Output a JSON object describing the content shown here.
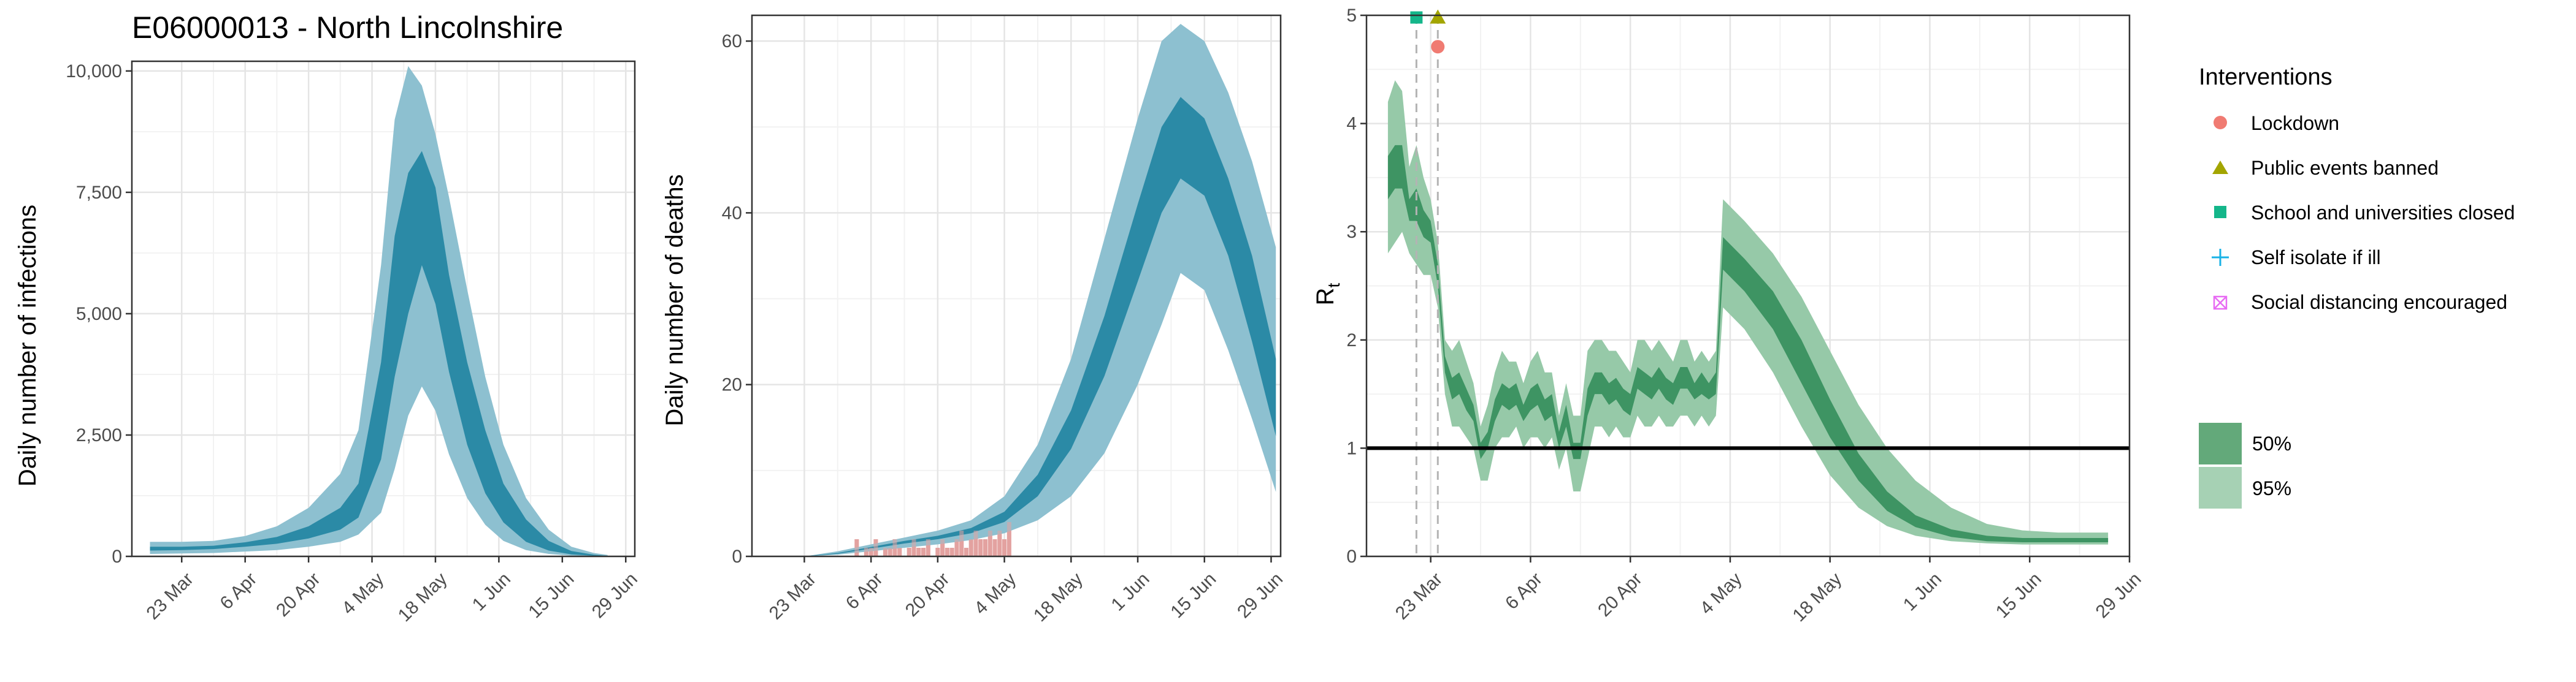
{
  "colors": {
    "infection_dark": "#2b8aa6",
    "infection_light": "#8dc0d0",
    "rt_dark": "#3e9463",
    "rt_light": "#96c9a8",
    "observed_deaths": "#e3a3a0",
    "lockdown": "#f07b72",
    "public_events": "#a3a500",
    "school": "#14b68a",
    "self_isolate": "#19b2e6",
    "social_distancing": "#e76bf3"
  },
  "chart_data": [
    {
      "type": "area",
      "title": "E06000013 - North Lincolnshire",
      "ylabel": "Daily number of infections",
      "xlabel": "",
      "x_ticks": [
        "23 Mar",
        "6 Apr",
        "20 Apr",
        "4 May",
        "18 May",
        "1 Jun",
        "15 Jun",
        "29 Jun"
      ],
      "y_ticks": [
        "0",
        "2,500",
        "5,000",
        "7,500",
        "10,000"
      ],
      "xlim": [
        "2020-03-12",
        "2020-07-01"
      ],
      "ylim": [
        0,
        10200
      ],
      "grid": true,
      "bands": {
        "x": [
          "2020-03-16",
          "2020-03-23",
          "2020-03-30",
          "2020-04-06",
          "2020-04-13",
          "2020-04-20",
          "2020-04-27",
          "2020-05-01",
          "2020-05-06",
          "2020-05-09",
          "2020-05-12",
          "2020-05-15",
          "2020-05-18",
          "2020-05-21",
          "2020-05-25",
          "2020-05-29",
          "2020-06-02",
          "2020-06-07",
          "2020-06-12",
          "2020-06-17",
          "2020-06-22",
          "2020-06-25"
        ],
        "outer_low": [
          50,
          60,
          70,
          100,
          130,
          200,
          300,
          450,
          900,
          1800,
          2900,
          3500,
          3000,
          2100,
          1200,
          650,
          320,
          130,
          50,
          15,
          5,
          2
        ],
        "outer_high": [
          300,
          300,
          320,
          420,
          620,
          1000,
          1700,
          2600,
          6000,
          9000,
          10100,
          9700,
          8700,
          7400,
          5500,
          3700,
          2300,
          1200,
          550,
          200,
          70,
          30
        ],
        "inner_low": [
          120,
          130,
          150,
          200,
          260,
          370,
          550,
          800,
          2000,
          3700,
          5000,
          6000,
          5200,
          3800,
          2300,
          1300,
          700,
          300,
          120,
          40,
          12,
          5
        ],
        "inner_high": [
          200,
          200,
          220,
          290,
          400,
          620,
          1000,
          1500,
          4000,
          6600,
          7900,
          8350,
          7600,
          5800,
          4000,
          2600,
          1500,
          760,
          320,
          110,
          35,
          12
        ]
      }
    },
    {
      "type": "area",
      "title": "",
      "ylabel": "Daily number of deaths",
      "xlabel": "",
      "x_ticks": [
        "23 Mar",
        "6 Apr",
        "20 Apr",
        "4 May",
        "18 May",
        "1 Jun",
        "15 Jun",
        "29 Jun"
      ],
      "y_ticks": [
        "0",
        "20",
        "40",
        "60"
      ],
      "xlim": [
        "2020-03-12",
        "2020-07-01"
      ],
      "ylim": [
        0,
        63
      ],
      "grid": true,
      "bands": {
        "x": [
          "2020-03-23",
          "2020-03-30",
          "2020-04-06",
          "2020-04-13",
          "2020-04-20",
          "2020-04-27",
          "2020-05-04",
          "2020-05-11",
          "2020-05-18",
          "2020-05-25",
          "2020-06-01",
          "2020-06-06",
          "2020-06-10",
          "2020-06-15",
          "2020-06-20",
          "2020-06-25",
          "2020-06-30"
        ],
        "outer_low": [
          0,
          0.2,
          0.6,
          1.0,
          1.4,
          1.9,
          2.7,
          4.2,
          7.0,
          12,
          20,
          27,
          33,
          31,
          24,
          16,
          7.5
        ],
        "outer_high": [
          0,
          0.6,
          1.4,
          2.2,
          3.0,
          4.2,
          7.0,
          13,
          23,
          37,
          51,
          60,
          62,
          60,
          54,
          46,
          36
        ],
        "inner_low": [
          0,
          0.3,
          0.9,
          1.5,
          2.0,
          2.7,
          4.0,
          7.0,
          12.5,
          21,
          32,
          40,
          44,
          42,
          35,
          25,
          14
        ],
        "inner_high": [
          0,
          0.4,
          1.1,
          1.8,
          2.4,
          3.3,
          5.2,
          9.5,
          17,
          28,
          41,
          50,
          53.5,
          51,
          44,
          35,
          23
        ]
      },
      "observed": {
        "x": [
          "2020-04-03",
          "2020-04-04",
          "2020-04-05",
          "2020-04-06",
          "2020-04-07",
          "2020-04-08",
          "2020-04-09",
          "2020-04-10",
          "2020-04-11",
          "2020-04-12",
          "2020-04-13",
          "2020-04-14",
          "2020-04-15",
          "2020-04-16",
          "2020-04-17",
          "2020-04-18",
          "2020-04-19",
          "2020-04-20",
          "2020-04-21",
          "2020-04-22",
          "2020-04-23",
          "2020-04-24",
          "2020-04-25",
          "2020-04-26",
          "2020-04-27",
          "2020-04-28",
          "2020-04-29",
          "2020-04-30",
          "2020-05-01",
          "2020-05-02",
          "2020-05-03",
          "2020-05-04",
          "2020-05-05"
        ],
        "values": [
          2,
          0,
          1,
          1,
          2,
          0,
          1,
          1,
          2,
          1,
          0,
          1,
          2,
          1,
          1,
          2,
          0,
          1,
          2,
          1,
          1,
          2,
          3,
          1,
          2,
          3,
          2,
          2,
          3,
          2,
          3,
          2,
          4
        ]
      }
    },
    {
      "type": "area",
      "title": "",
      "ylabel": "R",
      "ylabel_subscript": "t",
      "xlabel": "",
      "x_ticks": [
        "23 Mar",
        "6 Apr",
        "20 Apr",
        "4 May",
        "18 May",
        "1 Jun",
        "15 Jun",
        "29 Jun"
      ],
      "y_ticks": [
        "0",
        "1",
        "2",
        "3",
        "4",
        "5"
      ],
      "xlim": [
        "2020-03-14",
        "2020-06-29"
      ],
      "ylim": [
        0,
        5
      ],
      "grid": true,
      "reference_line": 1,
      "bands": {
        "x": [
          "2020-03-17",
          "2020-03-18",
          "2020-03-19",
          "2020-03-20",
          "2020-03-21",
          "2020-03-22",
          "2020-03-23",
          "2020-03-24",
          "2020-03-25",
          "2020-03-26",
          "2020-03-27",
          "2020-03-28",
          "2020-03-29",
          "2020-03-30",
          "2020-03-31",
          "2020-04-01",
          "2020-04-02",
          "2020-04-03",
          "2020-04-04",
          "2020-04-05",
          "2020-04-06",
          "2020-04-07",
          "2020-04-08",
          "2020-04-09",
          "2020-04-10",
          "2020-04-11",
          "2020-04-12",
          "2020-04-13",
          "2020-04-14",
          "2020-04-15",
          "2020-04-16",
          "2020-04-17",
          "2020-04-18",
          "2020-04-19",
          "2020-04-20",
          "2020-04-21",
          "2020-04-22",
          "2020-04-23",
          "2020-04-24",
          "2020-04-25",
          "2020-04-26",
          "2020-04-27",
          "2020-04-28",
          "2020-04-29",
          "2020-04-30",
          "2020-05-01",
          "2020-05-02",
          "2020-05-03",
          "2020-05-06",
          "2020-05-10",
          "2020-05-14",
          "2020-05-18",
          "2020-05-22",
          "2020-05-26",
          "2020-05-30",
          "2020-06-04",
          "2020-06-09",
          "2020-06-14",
          "2020-06-19",
          "2020-06-24",
          "2020-06-26"
        ],
        "outer_low": [
          2.8,
          2.9,
          3.0,
          2.8,
          2.7,
          2.6,
          2.6,
          2.3,
          1.5,
          1.2,
          1.2,
          1.1,
          1.0,
          0.7,
          0.7,
          1.0,
          1.1,
          1.1,
          1.2,
          1.0,
          1.1,
          1.1,
          1.0,
          1.1,
          0.8,
          1.0,
          0.6,
          0.6,
          0.9,
          1.2,
          1.2,
          1.1,
          1.2,
          1.1,
          1.1,
          1.3,
          1.2,
          1.2,
          1.3,
          1.2,
          1.2,
          1.3,
          1.3,
          1.2,
          1.3,
          1.2,
          1.3,
          2.3,
          2.1,
          1.7,
          1.2,
          0.75,
          0.45,
          0.28,
          0.19,
          0.14,
          0.12,
          0.11,
          0.11,
          0.11,
          0.11
        ],
        "outer_high": [
          4.2,
          4.4,
          4.3,
          3.6,
          3.8,
          3.5,
          3.3,
          2.9,
          2.0,
          1.9,
          2.0,
          1.8,
          1.6,
          1.2,
          1.4,
          1.7,
          1.9,
          1.8,
          1.8,
          1.6,
          1.8,
          1.9,
          1.7,
          1.7,
          1.3,
          1.6,
          1.3,
          1.3,
          1.9,
          2.0,
          2.0,
          1.9,
          1.9,
          1.8,
          1.7,
          2.0,
          2.0,
          1.9,
          2.0,
          1.9,
          1.8,
          2.0,
          2.0,
          1.8,
          1.9,
          1.8,
          1.9,
          3.3,
          3.1,
          2.8,
          2.4,
          1.9,
          1.4,
          1.0,
          0.7,
          0.45,
          0.3,
          0.24,
          0.22,
          0.22,
          0.22
        ],
        "inner_low": [
          3.3,
          3.4,
          3.4,
          3.1,
          3.1,
          2.95,
          2.9,
          2.5,
          1.7,
          1.45,
          1.5,
          1.35,
          1.25,
          0.9,
          1.0,
          1.25,
          1.4,
          1.35,
          1.4,
          1.25,
          1.35,
          1.4,
          1.25,
          1.3,
          1.0,
          1.2,
          0.9,
          0.9,
          1.3,
          1.5,
          1.5,
          1.4,
          1.45,
          1.35,
          1.3,
          1.55,
          1.5,
          1.45,
          1.55,
          1.45,
          1.4,
          1.55,
          1.55,
          1.45,
          1.5,
          1.45,
          1.5,
          2.65,
          2.45,
          2.1,
          1.6,
          1.1,
          0.7,
          0.42,
          0.27,
          0.18,
          0.14,
          0.13,
          0.13,
          0.13,
          0.13
        ],
        "inner_high": [
          3.7,
          3.8,
          3.8,
          3.3,
          3.4,
          3.2,
          3.1,
          2.7,
          1.85,
          1.65,
          1.7,
          1.55,
          1.4,
          1.05,
          1.15,
          1.45,
          1.6,
          1.55,
          1.6,
          1.4,
          1.55,
          1.6,
          1.45,
          1.5,
          1.15,
          1.4,
          1.05,
          1.05,
          1.55,
          1.7,
          1.7,
          1.6,
          1.65,
          1.55,
          1.5,
          1.75,
          1.7,
          1.65,
          1.75,
          1.65,
          1.6,
          1.75,
          1.75,
          1.6,
          1.7,
          1.6,
          1.7,
          2.95,
          2.75,
          2.45,
          2.0,
          1.45,
          0.95,
          0.6,
          0.38,
          0.25,
          0.19,
          0.17,
          0.17,
          0.17,
          0.17
        ]
      },
      "interventions": [
        {
          "name": "School and universities closed",
          "date": "2020-03-21",
          "shape": "square",
          "y": 4.98
        },
        {
          "name": "Public events banned",
          "date": "2020-03-24",
          "shape": "triangle",
          "y": 4.98
        },
        {
          "name": "Lockdown",
          "date": "2020-03-24",
          "shape": "circle",
          "y": 4.71
        }
      ]
    }
  ],
  "legend": {
    "interventions_title": "Interventions",
    "interventions": [
      {
        "label": "Lockdown",
        "shape": "circle"
      },
      {
        "label": "Public events banned",
        "shape": "triangle"
      },
      {
        "label": "School and universities closed",
        "shape": "square"
      },
      {
        "label": "Self isolate if ill",
        "shape": "plus"
      },
      {
        "label": "Social distancing encouraged",
        "shape": "boxcross"
      }
    ],
    "intervals": [
      {
        "label": "50%"
      },
      {
        "label": "95%"
      }
    ]
  }
}
